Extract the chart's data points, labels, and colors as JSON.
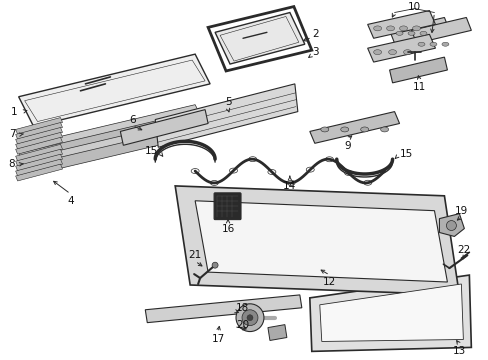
{
  "bg_color": "#ffffff",
  "fig_width": 4.89,
  "fig_height": 3.6,
  "dpi": 100,
  "lc": "#2a2a2a",
  "lw": 0.8,
  "fs": 7.5
}
